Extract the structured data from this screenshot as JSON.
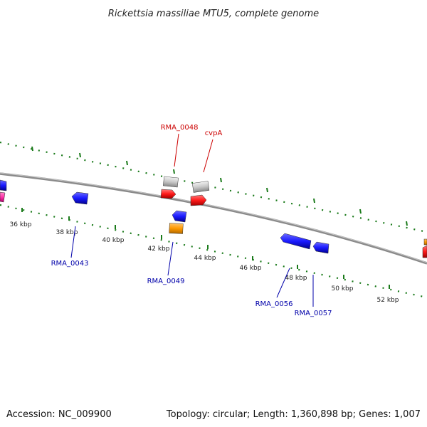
{
  "title": "Rickettsia massiliae MTU5, complete genome",
  "footer": {
    "accession": "Accession: NC_009900",
    "summary": "Topology: circular; Length: 1,360,898 bp; Genes: 1,007"
  },
  "colors": {
    "backbone": "#808080",
    "ruler": "#1a7a1a",
    "forward_label": "#cc0000",
    "reverse_label": "#0000aa",
    "gene_red": "#ff1a1a",
    "gene_gray": "#c8c8c8",
    "gene_blue": "#1a1aff",
    "gene_orange": "#ff9900",
    "gene_magenta": "#ff33aa"
  },
  "ruler_ticks": [
    "36 kbp",
    "38 kbp",
    "40 kbp",
    "42 kbp",
    "44 kbp",
    "46 kbp",
    "48 kbp",
    "50 kbp",
    "52 kbp"
  ],
  "gene_labels": {
    "rma_0048": "RMA_0048",
    "cvpa": "cvpA",
    "rma_0043": "RMA_0043",
    "rma_0049": "RMA_0049",
    "rma_0056": "RMA_0056",
    "rma_0057": "RMA_0057"
  }
}
